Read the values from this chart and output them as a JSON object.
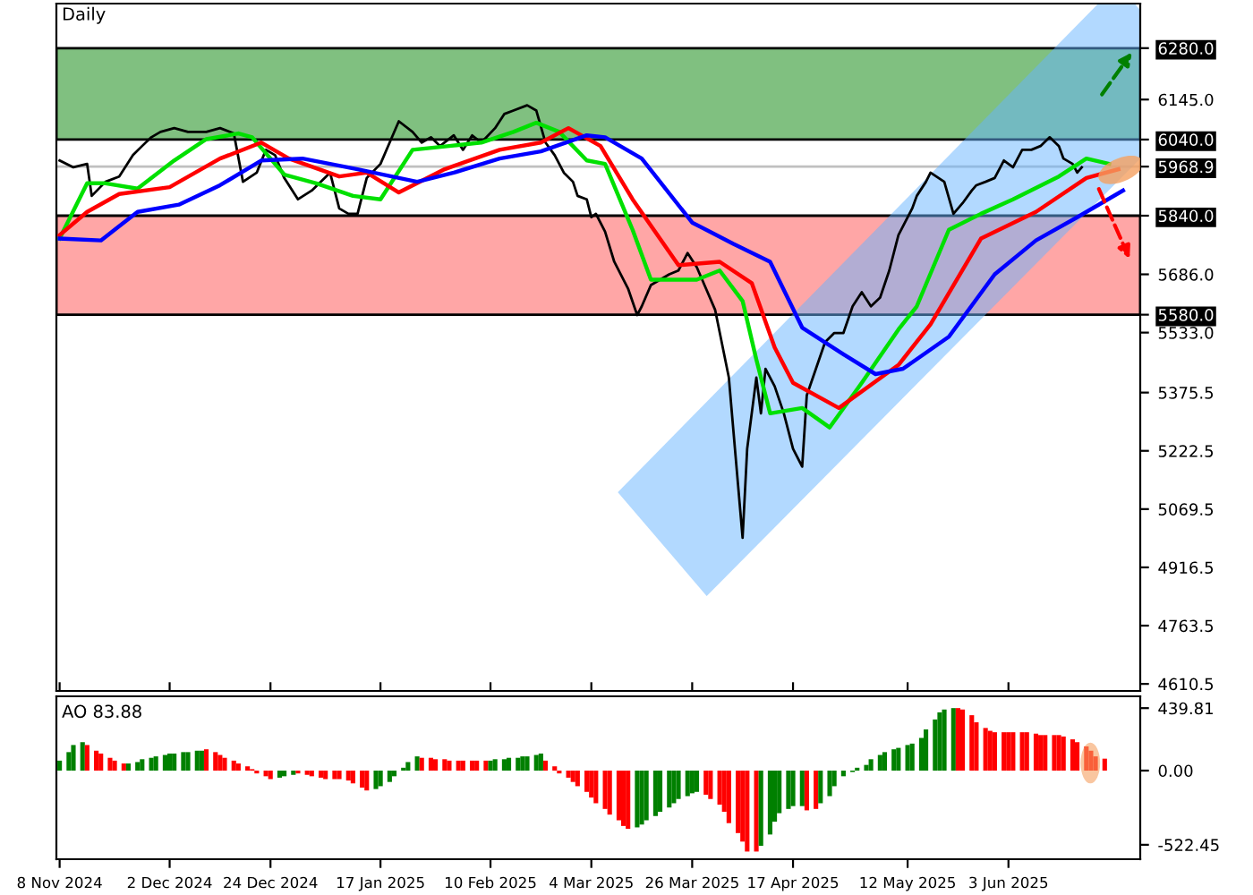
{
  "chart_data": [
    {
      "type": "line",
      "title": "Daily",
      "xlim": [
        "2024-11-07T07:00",
        "2025-07-01T18:00"
      ],
      "xticks": [
        {
          "value": "2024-11-08",
          "label": null
        },
        {
          "value": "2024-12-02",
          "label": null
        },
        {
          "value": "2024-12-24",
          "label": null
        },
        {
          "value": "2025-01-17",
          "label": null
        },
        {
          "value": "2025-02-10",
          "label": null
        },
        {
          "value": "2025-03-04",
          "label": null
        },
        {
          "value": "2025-03-26",
          "label": null
        },
        {
          "value": "2025-04-17",
          "label": null
        },
        {
          "value": "2025-05-12",
          "label": null
        },
        {
          "value": "2025-06-03",
          "label": null
        }
      ],
      "tick_labels": "y",
      "ylim": [
        4592,
        6397
      ],
      "yticks": [
        {
          "value": 6280,
          "label": "6280.0"
        },
        {
          "value": 6145,
          "label": "6145.0"
        },
        {
          "value": 6040,
          "label": "6040.0"
        },
        {
          "value": 5968.9,
          "label": "5968.9"
        },
        {
          "value": 5840,
          "label": "5840.0"
        },
        {
          "value": 5686,
          "label": "5686.0"
        },
        {
          "value": 5580,
          "label": "5580.0"
        },
        {
          "value": 5533,
          "label": "5533.0"
        },
        {
          "value": 5375.5,
          "label": "5375.5"
        },
        {
          "value": 5222.5,
          "label": "5222.5"
        },
        {
          "value": 5069.5,
          "label": "5069.5"
        },
        {
          "value": 4916.5,
          "label": "4916.5"
        },
        {
          "value": 4763.5,
          "label": "4763.5"
        },
        {
          "value": 4610.5,
          "label": "4610.5"
        }
      ],
      "bands": [
        {
          "axis": "y",
          "from": 6040,
          "to": 6280,
          "color": "#80c080"
        },
        {
          "axis": "y",
          "from": 5580,
          "to": 5840,
          "color": "#ffa6a6"
        }
      ],
      "ref_lines": [
        {
          "axis": "y",
          "value": 5968.9,
          "color": "#c0c0c0"
        }
      ],
      "series": [
        {
          "type": "line",
          "color": "#000000",
          "x": [
            "2024-11-08",
            "2024-11-11",
            "2024-11-14",
            "2024-11-15",
            "2024-11-18",
            "2024-11-21",
            "2024-11-24",
            "2024-11-26",
            "2024-11-28",
            "2024-11-30",
            "2024-12-03",
            "2024-12-06",
            "2024-12-10",
            "2024-12-13",
            "2024-12-16",
            "2024-12-18",
            "2024-12-21",
            "2024-12-23",
            "2024-12-25",
            "2024-12-27",
            "2024-12-30",
            "2025-01-02",
            "2025-01-06",
            "2025-01-08",
            "2025-01-10",
            "2025-01-12",
            "2025-01-14",
            "2025-01-17",
            "2025-01-19",
            "2025-01-21",
            "2025-01-24",
            "2025-01-26",
            "2025-01-28",
            "2025-01-30",
            "2025-02-02",
            "2025-02-04",
            "2025-02-06",
            "2025-02-08",
            "2025-02-11",
            "2025-02-13",
            "2025-02-15",
            "2025-02-18",
            "2025-02-20",
            "2025-02-22",
            "2025-02-24",
            "2025-02-26",
            "2025-02-28",
            "2025-03-01",
            "2025-03-03",
            "2025-03-04",
            "2025-03-05",
            "2025-03-07",
            "2025-03-09",
            "2025-03-12",
            "2025-03-14",
            "2025-03-15",
            "2025-03-17",
            "2025-03-19",
            "2025-03-21",
            "2025-03-23",
            "2025-03-25",
            "2025-03-27",
            "2025-03-29",
            "2025-03-31",
            "2025-04-03",
            "2025-04-05",
            "2025-04-06",
            "2025-04-07",
            "2025-04-09",
            "2025-04-10",
            "2025-04-11",
            "2025-04-13",
            "2025-04-15",
            "2025-04-17",
            "2025-04-19",
            "2025-04-20",
            "2025-04-22",
            "2025-04-24",
            "2025-04-26",
            "2025-04-28",
            "2025-04-30",
            "2025-05-02",
            "2025-05-04",
            "2025-05-06",
            "2025-05-08",
            "2025-05-10",
            "2025-05-13",
            "2025-05-14",
            "2025-05-16",
            "2025-05-17",
            "2025-05-20",
            "2025-05-22",
            "2025-05-24",
            "2025-05-26",
            "2025-05-27",
            "2025-05-29",
            "2025-05-31",
            "2025-06-02",
            "2025-06-04",
            "2025-06-06",
            "2025-06-08",
            "2025-06-10",
            "2025-06-12",
            "2025-06-14",
            "2025-06-15",
            "2025-06-17",
            "2025-06-18",
            "2025-06-19"
          ],
          "values": [
            5985,
            5967,
            5976,
            5892,
            5929,
            5943,
            5999,
            6023,
            6046,
            6060,
            6070,
            6060,
            6060,
            6070,
            6056,
            5929,
            5953,
            6013,
            5999,
            5939,
            5883,
            5906,
            5953,
            5859,
            5845,
            5845,
            5939,
            5976,
            6032,
            6088,
            6060,
            6032,
            6046,
            6023,
            6051,
            6013,
            6051,
            6032,
            6070,
            6107,
            6116,
            6130,
            6116,
            6032,
            5999,
            5953,
            5929,
            5892,
            5883,
            5836,
            5845,
            5798,
            5719,
            5649,
            5579,
            5602,
            5658,
            5672,
            5686,
            5696,
            5742,
            5705,
            5649,
            5593,
            5415,
            5134,
            4994,
            5228,
            5415,
            5321,
            5438,
            5392,
            5321,
            5228,
            5181,
            5368,
            5438,
            5508,
            5532,
            5532,
            5602,
            5639,
            5602,
            5625,
            5696,
            5789,
            5859,
            5892,
            5929,
            5953,
            5929,
            5845,
            5873,
            5906,
            5920,
            5929,
            5939,
            5985,
            5967,
            6013,
            6013,
            6023,
            6046,
            6023,
            5990,
            5976,
            5953,
            5967
          ]
        },
        {
          "type": "line",
          "color": "#00e000",
          "x": [
            "2024-11-08",
            "2024-11-14",
            "2024-11-18",
            "2024-11-25",
            "2024-12-03",
            "2024-12-10",
            "2024-12-17",
            "2024-12-20",
            "2024-12-27",
            "2025-01-03",
            "2025-01-11",
            "2025-01-17",
            "2025-01-24",
            "2025-02-01",
            "2025-02-08",
            "2025-02-15",
            "2025-02-20",
            "2025-02-25",
            "2025-03-03",
            "2025-03-07",
            "2025-03-13",
            "2025-03-17",
            "2025-03-27",
            "2025-04-01",
            "2025-04-06",
            "2025-04-09",
            "2025-04-12",
            "2025-04-19",
            "2025-04-25",
            "2025-05-02",
            "2025-05-10",
            "2025-05-14",
            "2025-05-21",
            "2025-05-28",
            "2025-06-04",
            "2025-06-14",
            "2025-06-20",
            "2025-06-25"
          ],
          "values": [
            5780,
            5925,
            5925,
            5911,
            5985,
            6041,
            6056,
            6046,
            5948,
            5925,
            5892,
            5883,
            6013,
            6023,
            6032,
            6060,
            6084,
            6060,
            5985,
            5976,
            5803,
            5672,
            5672,
            5696,
            5616,
            5462,
            5321,
            5335,
            5284,
            5401,
            5541,
            5602,
            5803,
            5845,
            5883,
            5943,
            5990,
            5976
          ]
        },
        {
          "type": "line",
          "color": "#ff0000",
          "x": [
            "2024-11-08",
            "2024-11-14",
            "2024-11-21",
            "2024-12-02",
            "2024-12-13",
            "2024-12-22",
            "2024-12-28",
            "2025-01-08",
            "2025-01-14",
            "2025-01-21",
            "2025-01-31",
            "2025-02-12",
            "2025-02-21",
            "2025-02-27",
            "2025-03-06",
            "2025-03-13",
            "2025-03-23",
            "2025-04-01",
            "2025-04-08",
            "2025-04-13",
            "2025-04-17",
            "2025-04-27",
            "2025-05-10",
            "2025-05-17",
            "2025-05-28",
            "2025-06-09",
            "2025-06-20",
            "2025-06-27"
          ],
          "values": [
            5789,
            5850,
            5897,
            5915,
            5990,
            6032,
            5990,
            5943,
            5953,
            5901,
            5962,
            6013,
            6032,
            6070,
            6023,
            5883,
            5710,
            5719,
            5663,
            5494,
            5401,
            5335,
            5448,
            5555,
            5780,
            5850,
            5939,
            5962
          ]
        },
        {
          "type": "line",
          "color": "#0000ff",
          "x": [
            "2024-11-08",
            "2024-11-17",
            "2024-11-25",
            "2024-12-04",
            "2024-12-13",
            "2024-12-22",
            "2024-12-31",
            "2025-01-12",
            "2025-01-25",
            "2025-02-02",
            "2025-02-12",
            "2025-02-21",
            "2025-03-03",
            "2025-03-07",
            "2025-03-15",
            "2025-03-26",
            "2025-04-04",
            "2025-04-12",
            "2025-04-19",
            "2025-04-28",
            "2025-05-05",
            "2025-05-11",
            "2025-05-21",
            "2025-05-31",
            "2025-06-09",
            "2025-06-18",
            "2025-06-28"
          ],
          "values": [
            5780,
            5775,
            5850,
            5869,
            5920,
            5985,
            5990,
            5962,
            5929,
            5953,
            5990,
            6009,
            6051,
            6046,
            5990,
            5822,
            5766,
            5719,
            5546,
            5476,
            5424,
            5438,
            5522,
            5686,
            5775,
            5836,
            5906
          ]
        }
      ]
    },
    {
      "type": "bar",
      "annotations": [
        "AO 83.88"
      ],
      "ylim": [
        -624,
        523
      ],
      "yticks": [
        439.81,
        {
          "value": 0,
          "label": "0.00"
        },
        -522.45
      ],
      "xlim": [
        "2024-11-07T07:00",
        "2025-07-01T18:00"
      ],
      "xticks": [
        {
          "value": "2024-11-08",
          "label": "8 Nov 2024"
        },
        {
          "value": "2024-12-02",
          "label": "2 Dec 2024"
        },
        {
          "value": "2024-12-24",
          "label": "24 Dec 2024"
        },
        {
          "value": "2025-01-17",
          "label": "17 Jan 2025"
        },
        {
          "value": "2025-02-10",
          "label": "10 Feb 2025"
        },
        {
          "value": "2025-03-04",
          "label": "4 Mar 2025"
        },
        {
          "value": "2025-03-26",
          "label": "26 Mar 2025"
        },
        {
          "value": "2025-04-17",
          "label": "17 Apr 2025"
        },
        {
          "value": "2025-05-12",
          "label": "12 May 2025"
        },
        {
          "value": "2025-06-03",
          "label": "3 Jun 2025"
        }
      ],
      "x": [
        "2024-11-08",
        "2024-11-10",
        "2024-11-11",
        "2024-11-13",
        "2024-11-14",
        "2024-11-16",
        "2024-11-17",
        "2024-11-19",
        "2024-11-20",
        "2024-11-22",
        "2024-11-23",
        "2024-11-25",
        "2024-11-26",
        "2024-11-28",
        "2024-11-29",
        "2024-12-01",
        "2024-12-02",
        "2024-12-03",
        "2024-12-05",
        "2024-12-06",
        "2024-12-08",
        "2024-12-09",
        "2024-12-10",
        "2024-12-12",
        "2024-12-13",
        "2024-12-14",
        "2024-12-16",
        "2024-12-17",
        "2024-12-19",
        "2024-12-20",
        "2024-12-21",
        "2024-12-23",
        "2024-12-24",
        "2024-12-26",
        "2024-12-27",
        "2024-12-29",
        "2024-12-30",
        "2025-01-01",
        "2025-01-02",
        "2025-01-04",
        "2025-01-05",
        "2025-01-07",
        "2025-01-08",
        "2025-01-10",
        "2025-01-11",
        "2025-01-13",
        "2025-01-14",
        "2025-01-16",
        "2025-01-17",
        "2025-01-19",
        "2025-01-20",
        "2025-01-22",
        "2025-01-23",
        "2025-01-25",
        "2025-01-26",
        "2025-01-28",
        "2025-01-29",
        "2025-01-31",
        "2025-02-01",
        "2025-02-03",
        "2025-02-04",
        "2025-02-06",
        "2025-02-07",
        "2025-02-09",
        "2025-02-10",
        "2025-02-11",
        "2025-02-13",
        "2025-02-14",
        "2025-02-16",
        "2025-02-17",
        "2025-02-18",
        "2025-02-20",
        "2025-02-21",
        "2025-02-22",
        "2025-02-24",
        "2025-02-25",
        "2025-02-27",
        "2025-02-28",
        "2025-03-01",
        "2025-03-03",
        "2025-03-04",
        "2025-03-05",
        "2025-03-07",
        "2025-03-08",
        "2025-03-10",
        "2025-03-11",
        "2025-03-12",
        "2025-03-14",
        "2025-03-15",
        "2025-03-16",
        "2025-03-18",
        "2025-03-19",
        "2025-03-21",
        "2025-03-22",
        "2025-03-23",
        "2025-03-25",
        "2025-03-26",
        "2025-03-27",
        "2025-03-29",
        "2025-03-30",
        "2025-04-01",
        "2025-04-02",
        "2025-04-03",
        "2025-04-05",
        "2025-04-06",
        "2025-04-07",
        "2025-04-09",
        "2025-04-10",
        "2025-04-12",
        "2025-04-13",
        "2025-04-14",
        "2025-04-16",
        "2025-04-17",
        "2025-04-19",
        "2025-04-20",
        "2025-04-22",
        "2025-04-23",
        "2025-04-25",
        "2025-04-26",
        "2025-04-28",
        "2025-04-30",
        "2025-05-01",
        "2025-05-03",
        "2025-05-04",
        "2025-05-06",
        "2025-05-07",
        "2025-05-09",
        "2025-05-10",
        "2025-05-12",
        "2025-05-13",
        "2025-05-15",
        "2025-05-16",
        "2025-05-18",
        "2025-05-19",
        "2025-05-20",
        "2025-05-22",
        "2025-05-23",
        "2025-05-24",
        "2025-05-26",
        "2025-05-27",
        "2025-05-29",
        "2025-05-30",
        "2025-05-31",
        "2025-06-02",
        "2025-06-03",
        "2025-06-04",
        "2025-06-06",
        "2025-06-07",
        "2025-06-09",
        "2025-06-10",
        "2025-06-11",
        "2025-06-13",
        "2025-06-14",
        "2025-06-15",
        "2025-06-17",
        "2025-06-18",
        "2025-06-20",
        "2025-06-21",
        "2025-06-22",
        "2025-06-24"
      ],
      "values": [
        70,
        130,
        180,
        200,
        180,
        140,
        120,
        90,
        70,
        50,
        50,
        60,
        80,
        90,
        100,
        110,
        120,
        120,
        130,
        130,
        140,
        140,
        150,
        130,
        110,
        90,
        70,
        50,
        30,
        10,
        -20,
        -40,
        -60,
        -50,
        -40,
        -30,
        -20,
        -30,
        -40,
        -50,
        -60,
        -60,
        -60,
        -70,
        -90,
        -120,
        -140,
        -130,
        -110,
        -80,
        -40,
        20,
        60,
        100,
        90,
        90,
        80,
        80,
        70,
        70,
        70,
        70,
        70,
        70,
        70,
        80,
        80,
        90,
        90,
        100,
        100,
        110,
        120,
        70,
        30,
        -20,
        -50,
        -80,
        -110,
        -150,
        -190,
        -230,
        -270,
        -310,
        -350,
        -390,
        -410,
        -400,
        -380,
        -350,
        -320,
        -290,
        -260,
        -230,
        -200,
        -180,
        -160,
        -150,
        -170,
        -200,
        -240,
        -290,
        -370,
        -440,
        -500,
        -570,
        -570,
        -530,
        -450,
        -360,
        -300,
        -270,
        -250,
        -250,
        -280,
        -270,
        -230,
        -180,
        -110,
        -40,
        -10,
        20,
        40,
        80,
        110,
        130,
        150,
        160,
        180,
        190,
        230,
        290,
        360,
        410,
        430,
        440,
        440,
        430,
        390,
        340,
        300,
        280,
        270,
        270,
        270,
        270,
        270,
        270,
        260,
        250,
        250,
        250,
        250,
        240,
        220,
        200,
        170,
        140,
        100,
        83.88
      ],
      "colors": [
        "#008000",
        "#008000",
        "#008000",
        "#008000",
        "#ff0000",
        "#ff0000",
        "#ff0000",
        "#ff0000",
        "#ff0000",
        "#ff0000",
        "#008000",
        "#008000",
        "#008000",
        "#008000",
        "#008000",
        "#008000",
        "#008000",
        "#008000",
        "#008000",
        "#008000",
        "#008000",
        "#008000",
        "#ff0000",
        "#ff0000",
        "#ff0000",
        "#ff0000",
        "#ff0000",
        "#ff0000",
        "#ff0000",
        "#ff0000",
        "#ff0000",
        "#ff0000",
        "#ff0000",
        "#008000",
        "#008000",
        "#008000",
        "#ff0000",
        "#ff0000",
        "#ff0000",
        "#ff0000",
        "#ff0000",
        "#ff0000",
        "#ff0000",
        "#ff0000",
        "#ff0000",
        "#ff0000",
        "#ff0000",
        "#008000",
        "#008000",
        "#008000",
        "#008000",
        "#008000",
        "#008000",
        "#008000",
        "#ff0000",
        "#ff0000",
        "#ff0000",
        "#ff0000",
        "#ff0000",
        "#ff0000",
        "#ff0000",
        "#ff0000",
        "#ff0000",
        "#ff0000",
        "#008000",
        "#008000",
        "#008000",
        "#008000",
        "#008000",
        "#008000",
        "#008000",
        "#008000",
        "#008000",
        "#ff0000",
        "#ff0000",
        "#ff0000",
        "#ff0000",
        "#ff0000",
        "#ff0000",
        "#ff0000",
        "#ff0000",
        "#ff0000",
        "#ff0000",
        "#ff0000",
        "#ff0000",
        "#ff0000",
        "#ff0000",
        "#008000",
        "#008000",
        "#008000",
        "#008000",
        "#008000",
        "#008000",
        "#008000",
        "#008000",
        "#008000",
        "#008000",
        "#008000",
        "#ff0000",
        "#ff0000",
        "#ff0000",
        "#ff0000",
        "#ff0000",
        "#ff0000",
        "#ff0000",
        "#ff0000",
        "#ff0000",
        "#008000",
        "#008000",
        "#008000",
        "#008000",
        "#008000",
        "#008000",
        "#008000",
        "#ff0000",
        "#ff0000",
        "#008000",
        "#008000",
        "#008000",
        "#008000",
        "#008000",
        "#008000",
        "#008000",
        "#008000",
        "#008000",
        "#008000",
        "#008000",
        "#008000",
        "#008000",
        "#008000",
        "#008000",
        "#008000",
        "#008000",
        "#008000",
        "#008000",
        "#008000",
        "#ff0000",
        "#ff0000",
        "#ff0000",
        "#ff0000",
        "#ff0000",
        "#ff0000",
        "#ff0000",
        "#ff0000",
        "#ff0000",
        "#ff0000",
        "#ff0000",
        "#ff0000",
        "#ff0000",
        "#ff0000",
        "#ff0000",
        "#ff0000",
        "#ff0000",
        "#ff0000",
        "#ff0000",
        "#ff0000",
        "#ff0000",
        "#ff0000",
        "#ff0000",
        "#ff0000"
      ]
    }
  ]
}
